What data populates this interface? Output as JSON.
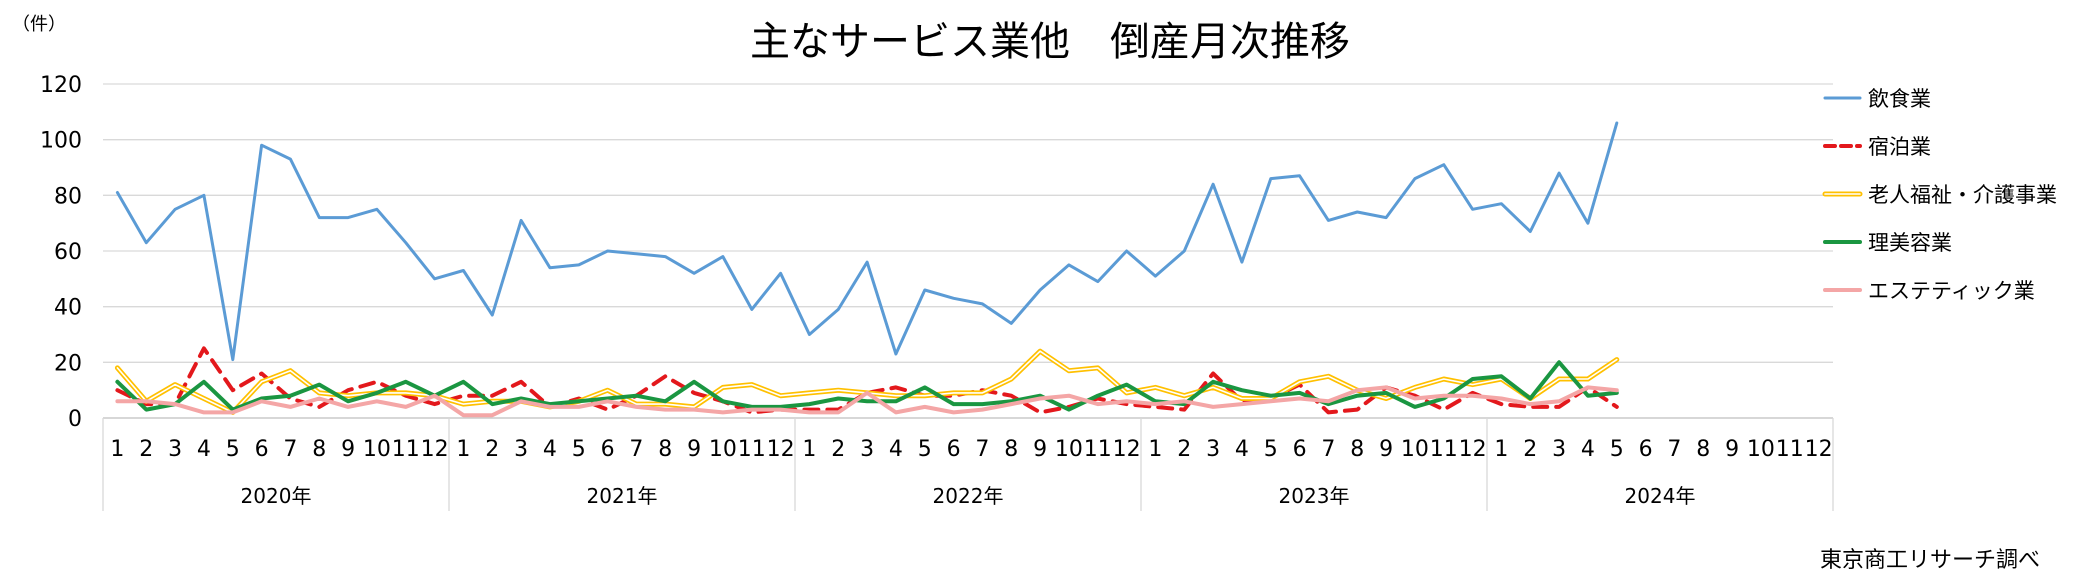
{
  "chart_data": {
    "type": "line",
    "title": "主なサービス業他　倒産月次推移",
    "unit_label": "（件）",
    "source": "東京商工リサーチ調べ",
    "ylim": [
      0,
      120
    ],
    "yticks": [
      0,
      20,
      40,
      60,
      80,
      100,
      120
    ],
    "grid": true,
    "legend_position": "right",
    "years": [
      {
        "label": "2020年",
        "months": [
          "1",
          "2",
          "3",
          "4",
          "5",
          "6",
          "7",
          "8",
          "9",
          "10",
          "11",
          "12"
        ]
      },
      {
        "label": "2021年",
        "months": [
          "1",
          "2",
          "3",
          "4",
          "5",
          "6",
          "7",
          "8",
          "9",
          "10",
          "11",
          "12"
        ]
      },
      {
        "label": "2022年",
        "months": [
          "1",
          "2",
          "3",
          "4",
          "5",
          "6",
          "7",
          "8",
          "9",
          "10",
          "11",
          "12"
        ]
      },
      {
        "label": "2023年",
        "months": [
          "1",
          "2",
          "3",
          "4",
          "5",
          "6",
          "7",
          "8",
          "9",
          "10",
          "11",
          "12"
        ]
      },
      {
        "label": "2024年",
        "months": [
          "1",
          "2",
          "3",
          "4",
          "5",
          "6",
          "7",
          "8",
          "9",
          "10",
          "11",
          "12"
        ]
      }
    ],
    "series": [
      {
        "name": "飲食業",
        "color": "#5b9bd5",
        "dash": "",
        "width": 3,
        "values": [
          81,
          63,
          75,
          80,
          21,
          98,
          93,
          72,
          72,
          75,
          63,
          50,
          53,
          37,
          71,
          54,
          55,
          60,
          59,
          58,
          52,
          58,
          39,
          52,
          30,
          39,
          56,
          23,
          46,
          43,
          41,
          34,
          46,
          55,
          49,
          60,
          51,
          60,
          84,
          56,
          86,
          87,
          71,
          74,
          72,
          86,
          91,
          75,
          77,
          67,
          88,
          70,
          106
        ]
      },
      {
        "name": "宿泊業",
        "color": "#e3181c",
        "dash": "14,9",
        "width": 4,
        "values": [
          10,
          5,
          5,
          25,
          10,
          16,
          7,
          4,
          10,
          13,
          8,
          5,
          8,
          8,
          13,
          4,
          7,
          3,
          8,
          15,
          9,
          6,
          2,
          3,
          3,
          3,
          9,
          11,
          8,
          8,
          10,
          8,
          2,
          4,
          7,
          5,
          4,
          3,
          16,
          6,
          7,
          12,
          2,
          3,
          11,
          8,
          3,
          9,
          5,
          4,
          4,
          11,
          4
        ]
      },
      {
        "name": "老人福祉・介護事業",
        "color": "#ffc000",
        "dash": "",
        "width": 2,
        "double": true,
        "values": [
          18,
          6,
          12,
          7,
          2,
          13,
          17,
          9,
          8,
          9,
          9,
          8,
          5,
          6,
          6,
          4,
          6,
          10,
          5,
          5,
          4,
          11,
          12,
          8,
          9,
          10,
          9,
          8,
          8,
          9,
          9,
          14,
          24,
          17,
          18,
          9,
          11,
          8,
          11,
          7,
          7,
          13,
          15,
          10,
          7,
          11,
          14,
          12,
          14,
          7,
          14,
          14,
          21
        ]
      },
      {
        "name": "理美容業",
        "color": "#1a9641",
        "dash": "",
        "width": 4,
        "values": [
          13,
          3,
          5,
          13,
          3,
          7,
          8,
          12,
          6,
          9,
          13,
          8,
          13,
          5,
          7,
          5,
          6,
          7,
          8,
          6,
          13,
          6,
          4,
          4,
          5,
          7,
          6,
          6,
          11,
          5,
          5,
          6,
          8,
          3,
          8,
          12,
          6,
          5,
          13,
          10,
          8,
          9,
          5,
          8,
          9,
          4,
          7,
          14,
          15,
          7,
          20,
          8,
          9
        ]
      },
      {
        "name": "エステティック業",
        "color": "#f4a6a6",
        "dash": "",
        "width": 4,
        "values": [
          6,
          6,
          5,
          2,
          2,
          6,
          4,
          7,
          4,
          6,
          4,
          8,
          1,
          1,
          6,
          4,
          4,
          6,
          4,
          3,
          3,
          2,
          3,
          3,
          2,
          2,
          9,
          2,
          4,
          2,
          3,
          5,
          7,
          8,
          5,
          6,
          5,
          6,
          4,
          5,
          6,
          7,
          6,
          10,
          11,
          7,
          8,
          8,
          7,
          5,
          6,
          11,
          10
        ]
      }
    ]
  }
}
